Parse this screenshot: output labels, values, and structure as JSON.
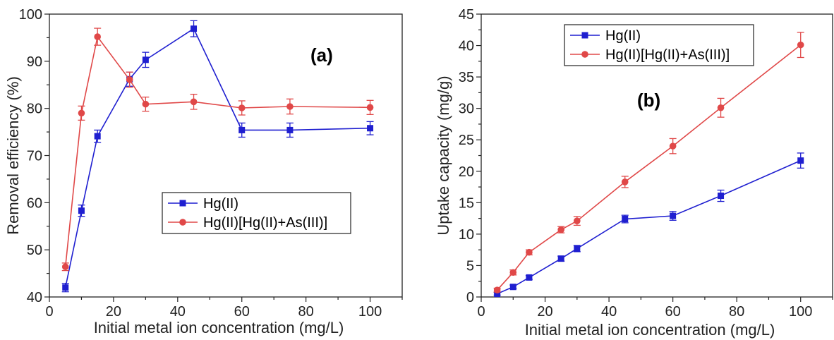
{
  "chart_data": [
    {
      "type": "line",
      "panel_label": "(a)",
      "xlabel": "Initial metal ion concentration (mg/L)",
      "ylabel": "Removal efficiency (%)",
      "xlim": [
        0,
        110
      ],
      "ylim": [
        40,
        100
      ],
      "xticks": [
        0,
        20,
        40,
        60,
        80,
        100
      ],
      "yticks": [
        40,
        50,
        60,
        70,
        80,
        90,
        100
      ],
      "legend_position": "center-right",
      "series": [
        {
          "name": "Hg(II)",
          "color": "#1f1fd0",
          "marker": "square",
          "x": [
            5,
            10,
            15,
            25,
            30,
            45,
            60,
            75,
            100
          ],
          "y": [
            42,
            58.3,
            74.1,
            86.2,
            90.3,
            96.9,
            75.4,
            75.4,
            75.8
          ],
          "err": [
            0.9,
            1.2,
            1.3,
            1.5,
            1.6,
            1.7,
            1.5,
            1.5,
            1.4
          ]
        },
        {
          "name": "Hg(II)[Hg(II)+As(III)]",
          "color": "#e04848",
          "marker": "circle",
          "x": [
            5,
            10,
            15,
            25,
            30,
            45,
            60,
            75,
            100
          ],
          "y": [
            46.4,
            79,
            95.2,
            86.1,
            80.9,
            81.4,
            80.1,
            80.4,
            80.2
          ],
          "err": [
            0.8,
            1.5,
            1.8,
            1.6,
            1.5,
            1.6,
            1.5,
            1.6,
            1.5
          ]
        }
      ]
    },
    {
      "type": "line",
      "panel_label": "(b)",
      "xlabel": "Initial metal ion concentration (mg/L)",
      "ylabel": "Uptake capacity (mg/g)",
      "xlim": [
        0,
        110
      ],
      "ylim": [
        0,
        45
      ],
      "xticks": [
        0,
        20,
        40,
        60,
        80,
        100
      ],
      "yticks": [
        0,
        5,
        10,
        15,
        20,
        25,
        30,
        35,
        40,
        45
      ],
      "legend_position": "top-left",
      "series": [
        {
          "name": "Hg(II)",
          "color": "#1f1fd0",
          "marker": "square",
          "x": [
            5,
            10,
            15,
            25,
            30,
            45,
            60,
            75,
            100
          ],
          "y": [
            0.5,
            1.6,
            3.1,
            6.1,
            7.7,
            12.4,
            12.9,
            16.1,
            21.7
          ],
          "err": [
            0.2,
            0.3,
            0.3,
            0.4,
            0.5,
            0.6,
            0.7,
            0.9,
            1.2
          ]
        },
        {
          "name": "Hg(II)[Hg(II)+As(III)]",
          "color": "#e04848",
          "marker": "circle",
          "x": [
            5,
            10,
            15,
            25,
            30,
            45,
            60,
            75,
            100
          ],
          "y": [
            1.1,
            3.9,
            7.1,
            10.7,
            12.1,
            18.3,
            24,
            30.1,
            40.1
          ],
          "err": [
            0.3,
            0.4,
            0.4,
            0.5,
            0.7,
            0.9,
            1.2,
            1.5,
            2
          ]
        }
      ]
    }
  ]
}
